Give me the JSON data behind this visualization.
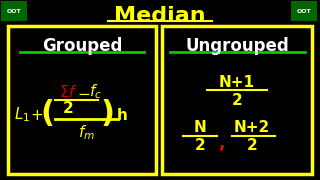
{
  "bg_color": "#000000",
  "title": "Median",
  "title_color": "#FFFF00",
  "title_underline": true,
  "box_color": "#FFFF00",
  "box_bg": "#000000",
  "grouped_label": "Grouped",
  "ungrouped_label": "Ungrouped",
  "label_color": "#FFFFFF",
  "underline_color": "#00CC00",
  "oot_color": "#FFFFFF",
  "oot_box_color": "#006600",
  "formula_yellow": "#FFFF00",
  "formula_red": "#CC0000",
  "formula_white": "#FFFFFF",
  "comma_red": "#FF0000"
}
